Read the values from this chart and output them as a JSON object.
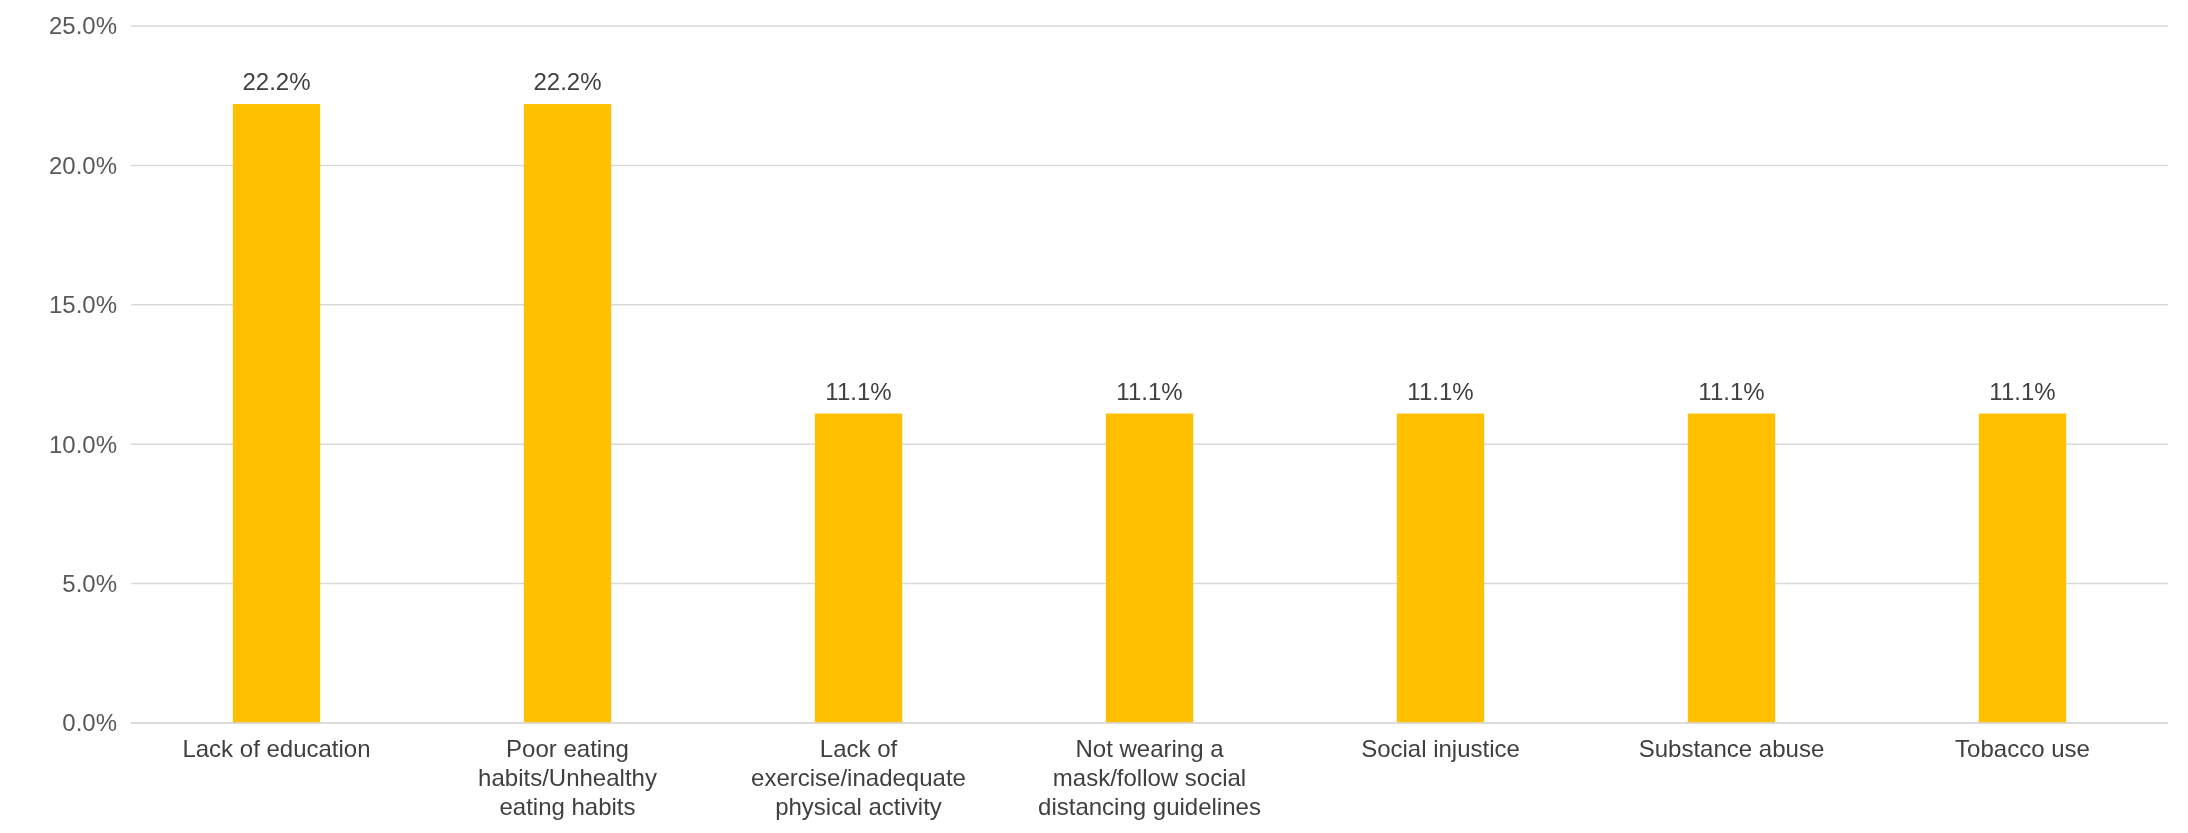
{
  "chart_data": {
    "type": "bar",
    "categories": [
      "Lack of education",
      "Poor eating habits/Unhealthy eating habits",
      "Lack of exercise/inadequate physical activity",
      "Not wearing a mask/follow social distancing guidelines",
      "Social injustice",
      "Substance abuse",
      "Tobacco use"
    ],
    "values": [
      22.2,
      22.2,
      11.1,
      11.1,
      11.1,
      11.1,
      11.1
    ],
    "value_labels": [
      "22.2%",
      "22.2%",
      "11.1%",
      "11.1%",
      "11.1%",
      "11.1%",
      "11.1%"
    ],
    "color": "#ffc000",
    "ylim": [
      0,
      25
    ],
    "yticks": [
      {
        "value": 0,
        "label": "0.0%"
      },
      {
        "value": 5,
        "label": "5.0%"
      },
      {
        "value": 10,
        "label": "10.0%"
      },
      {
        "value": 15,
        "label": "15.0%"
      },
      {
        "value": 20,
        "label": "20.0%"
      },
      {
        "value": 25,
        "label": "25.0%"
      }
    ],
    "grid": "y"
  }
}
